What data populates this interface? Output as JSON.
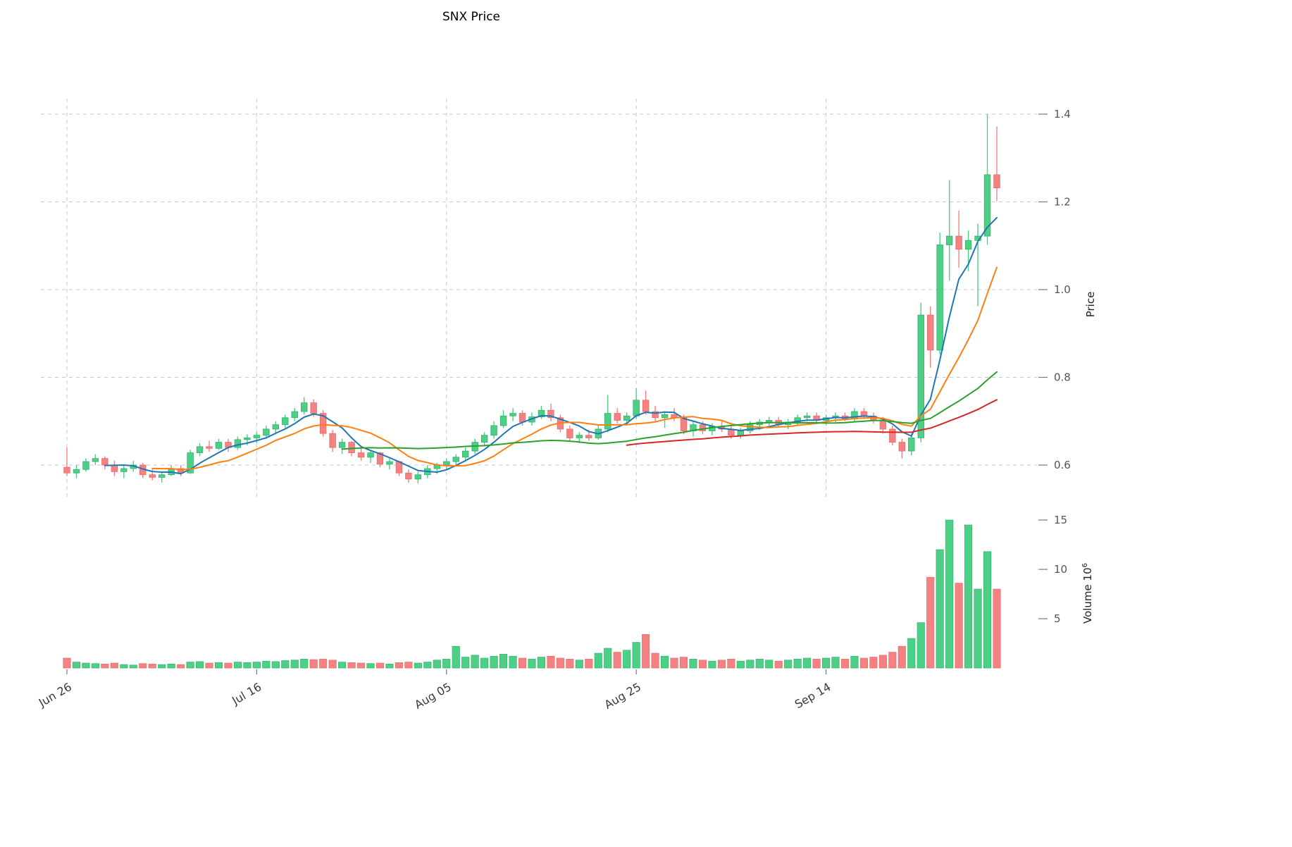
{
  "title": "SNX Price",
  "colors": {
    "up": "#4ecf86",
    "up_edge": "#2fb26d",
    "down": "#f58282",
    "down_edge": "#e76a6a",
    "ma_fast": "#1f77b4",
    "ma_mid": "#ff7f0e",
    "ma_slow": "#2ca02c",
    "ma_slowest": "#d62728",
    "grid": "#c9c9c9",
    "tick": "#777777"
  },
  "axes": {
    "price_label": "Price",
    "volume_label_prefix": "Volume  10",
    "volume_exponent": "6",
    "price_ticks": [
      "0.6",
      "0.8",
      "1.0",
      "1.2",
      "1.4"
    ],
    "volume_ticks": [
      "5",
      "10",
      "15"
    ],
    "x_tick_labels": [
      "Jun 26",
      "Jul 16",
      "Aug 05",
      "Aug 25",
      "Sep 14"
    ],
    "x_tick_indices": [
      0,
      20,
      40,
      60,
      80
    ]
  },
  "chart_data": {
    "type": "candlestick",
    "title": "SNX Price",
    "xlabel": "",
    "ylabel": "Price",
    "ylabel_volume": "Volume x10^6",
    "ylim": [
      0.53,
      1.45
    ],
    "volume_ylim_millions": [
      0,
      16
    ],
    "grid": "dashed",
    "legend": "none",
    "columns": [
      "date",
      "open",
      "high",
      "low",
      "close",
      "volume_millions"
    ],
    "moving_averages": [
      {
        "name": "SMA 5",
        "window": 5,
        "color": "#1f77b4"
      },
      {
        "name": "SMA 10",
        "window": 10,
        "color": "#ff7f0e"
      },
      {
        "name": "SMA 30",
        "window": 30,
        "color": "#2ca02c"
      },
      {
        "name": "SMA 60",
        "window": 60,
        "color": "#d62728"
      }
    ],
    "candles": [
      [
        "Jun 26",
        0.595,
        0.64,
        0.575,
        0.582,
        1.0
      ],
      [
        "Jun 27",
        0.582,
        0.6,
        0.57,
        0.59,
        0.6
      ],
      [
        "Jun 28",
        0.59,
        0.615,
        0.585,
        0.608,
        0.5
      ],
      [
        "Jun 29",
        0.608,
        0.625,
        0.6,
        0.615,
        0.45
      ],
      [
        "Jun 30",
        0.615,
        0.62,
        0.59,
        0.6,
        0.4
      ],
      [
        "Jul 01",
        0.6,
        0.61,
        0.575,
        0.585,
        0.5
      ],
      [
        "Jul 02",
        0.585,
        0.6,
        0.57,
        0.592,
        0.35
      ],
      [
        "Jul 03",
        0.592,
        0.61,
        0.585,
        0.6,
        0.3
      ],
      [
        "Jul 04",
        0.6,
        0.605,
        0.57,
        0.578,
        0.45
      ],
      [
        "Jul 05",
        0.578,
        0.59,
        0.565,
        0.572,
        0.4
      ],
      [
        "Jul 06",
        0.572,
        0.585,
        0.56,
        0.578,
        0.35
      ],
      [
        "Jul 07",
        0.578,
        0.6,
        0.575,
        0.592,
        0.4
      ],
      [
        "Jul 08",
        0.592,
        0.6,
        0.575,
        0.582,
        0.35
      ],
      [
        "Jul 09",
        0.582,
        0.635,
        0.58,
        0.628,
        0.6
      ],
      [
        "Jul 10",
        0.628,
        0.65,
        0.62,
        0.642,
        0.65
      ],
      [
        "Jul 11",
        0.642,
        0.655,
        0.63,
        0.638,
        0.5
      ],
      [
        "Jul 12",
        0.638,
        0.66,
        0.635,
        0.652,
        0.55
      ],
      [
        "Jul 13",
        0.652,
        0.66,
        0.63,
        0.64,
        0.5
      ],
      [
        "Jul 14",
        0.64,
        0.665,
        0.635,
        0.658,
        0.6
      ],
      [
        "Jul 15",
        0.658,
        0.67,
        0.645,
        0.662,
        0.55
      ],
      [
        "Jul 16",
        0.662,
        0.675,
        0.65,
        0.668,
        0.6
      ],
      [
        "Jul 17",
        0.668,
        0.69,
        0.66,
        0.682,
        0.7
      ],
      [
        "Jul 18",
        0.682,
        0.7,
        0.67,
        0.692,
        0.65
      ],
      [
        "Jul 19",
        0.692,
        0.715,
        0.685,
        0.708,
        0.75
      ],
      [
        "Jul 20",
        0.708,
        0.73,
        0.7,
        0.722,
        0.8
      ],
      [
        "Jul 21",
        0.722,
        0.755,
        0.715,
        0.742,
        0.9
      ],
      [
        "Jul 22",
        0.742,
        0.75,
        0.71,
        0.718,
        0.85
      ],
      [
        "Jul 23",
        0.718,
        0.725,
        0.665,
        0.672,
        0.9
      ],
      [
        "Jul 24",
        0.672,
        0.68,
        0.63,
        0.64,
        0.8
      ],
      [
        "Jul 25",
        0.64,
        0.66,
        0.625,
        0.652,
        0.6
      ],
      [
        "Jul 26",
        0.652,
        0.655,
        0.62,
        0.628,
        0.55
      ],
      [
        "Jul 27",
        0.628,
        0.64,
        0.61,
        0.618,
        0.5
      ],
      [
        "Jul 28",
        0.618,
        0.635,
        0.605,
        0.628,
        0.45
      ],
      [
        "Jul 29",
        0.628,
        0.63,
        0.595,
        0.602,
        0.5
      ],
      [
        "Jul 30",
        0.602,
        0.615,
        0.59,
        0.608,
        0.4
      ],
      [
        "Jul 31",
        0.608,
        0.61,
        0.575,
        0.582,
        0.55
      ],
      [
        "Aug 01",
        0.582,
        0.59,
        0.56,
        0.568,
        0.6
      ],
      [
        "Aug 02",
        0.568,
        0.585,
        0.558,
        0.578,
        0.5
      ],
      [
        "Aug 03",
        0.578,
        0.6,
        0.57,
        0.592,
        0.6
      ],
      [
        "Aug 04",
        0.592,
        0.605,
        0.58,
        0.6,
        0.8
      ],
      [
        "Aug 05",
        0.6,
        0.615,
        0.59,
        0.608,
        0.9
      ],
      [
        "Aug 06",
        0.608,
        0.625,
        0.6,
        0.618,
        2.2
      ],
      [
        "Aug 07",
        0.618,
        0.64,
        0.61,
        0.632,
        1.1
      ],
      [
        "Aug 08",
        0.632,
        0.66,
        0.625,
        0.652,
        1.3
      ],
      [
        "Aug 09",
        0.652,
        0.675,
        0.645,
        0.668,
        1.0
      ],
      [
        "Aug 10",
        0.668,
        0.7,
        0.66,
        0.69,
        1.2
      ],
      [
        "Aug 11",
        0.69,
        0.725,
        0.685,
        0.712,
        1.4
      ],
      [
        "Aug 12",
        0.712,
        0.73,
        0.7,
        0.718,
        1.2
      ],
      [
        "Aug 13",
        0.718,
        0.725,
        0.69,
        0.698,
        1.0
      ],
      [
        "Aug 14",
        0.698,
        0.72,
        0.69,
        0.71,
        0.9
      ],
      [
        "Aug 15",
        0.71,
        0.735,
        0.705,
        0.725,
        1.1
      ],
      [
        "Aug 16",
        0.725,
        0.74,
        0.7,
        0.708,
        1.2
      ],
      [
        "Aug 17",
        0.708,
        0.715,
        0.675,
        0.682,
        1.0
      ],
      [
        "Aug 18",
        0.682,
        0.69,
        0.655,
        0.662,
        0.9
      ],
      [
        "Aug 19",
        0.662,
        0.675,
        0.65,
        0.668,
        0.8
      ],
      [
        "Aug 20",
        0.668,
        0.68,
        0.655,
        0.662,
        0.9
      ],
      [
        "Aug 21",
        0.662,
        0.69,
        0.658,
        0.682,
        1.5
      ],
      [
        "Aug 22",
        0.682,
        0.76,
        0.675,
        0.718,
        2.0
      ],
      [
        "Aug 23",
        0.718,
        0.73,
        0.695,
        0.702,
        1.6
      ],
      [
        "Aug 24",
        0.702,
        0.72,
        0.69,
        0.712,
        1.8
      ],
      [
        "Aug 25",
        0.712,
        0.775,
        0.705,
        0.748,
        2.6
      ],
      [
        "Aug 26",
        0.748,
        0.77,
        0.715,
        0.722,
        3.4
      ],
      [
        "Aug 27",
        0.722,
        0.735,
        0.7,
        0.708,
        1.5
      ],
      [
        "Aug 28",
        0.708,
        0.72,
        0.685,
        0.715,
        1.2
      ],
      [
        "Aug 29",
        0.715,
        0.73,
        0.7,
        0.708,
        1.0
      ],
      [
        "Aug 30",
        0.708,
        0.715,
        0.67,
        0.678,
        1.1
      ],
      [
        "Aug 31",
        0.678,
        0.7,
        0.665,
        0.692,
        0.9
      ],
      [
        "Sep 01",
        0.692,
        0.7,
        0.67,
        0.678,
        0.8
      ],
      [
        "Sep 02",
        0.678,
        0.695,
        0.668,
        0.688,
        0.7
      ],
      [
        "Sep 03",
        0.688,
        0.7,
        0.675,
        0.682,
        0.8
      ],
      [
        "Sep 04",
        0.682,
        0.69,
        0.66,
        0.668,
        0.9
      ],
      [
        "Sep 05",
        0.668,
        0.685,
        0.66,
        0.678,
        0.7
      ],
      [
        "Sep 06",
        0.678,
        0.7,
        0.672,
        0.692,
        0.8
      ],
      [
        "Sep 07",
        0.692,
        0.705,
        0.68,
        0.698,
        0.9
      ],
      [
        "Sep 08",
        0.698,
        0.71,
        0.69,
        0.702,
        0.8
      ],
      [
        "Sep 09",
        0.702,
        0.71,
        0.685,
        0.692,
        0.7
      ],
      [
        "Sep 10",
        0.692,
        0.705,
        0.682,
        0.698,
        0.8
      ],
      [
        "Sep 11",
        0.698,
        0.715,
        0.69,
        0.708,
        0.9
      ],
      [
        "Sep 12",
        0.708,
        0.72,
        0.7,
        0.712,
        1.0
      ],
      [
        "Sep 13",
        0.712,
        0.72,
        0.695,
        0.702,
        0.9
      ],
      [
        "Sep 14",
        0.702,
        0.715,
        0.692,
        0.708,
        1.0
      ],
      [
        "Sep 15",
        0.708,
        0.72,
        0.698,
        0.712,
        1.1
      ],
      [
        "Sep 16",
        0.712,
        0.72,
        0.7,
        0.705,
        0.9
      ],
      [
        "Sep 17",
        0.705,
        0.73,
        0.7,
        0.722,
        1.2
      ],
      [
        "Sep 18",
        0.722,
        0.73,
        0.705,
        0.712,
        1.0
      ],
      [
        "Sep 19",
        0.712,
        0.72,
        0.695,
        0.702,
        1.1
      ],
      [
        "Sep 20",
        0.702,
        0.71,
        0.672,
        0.682,
        1.3
      ],
      [
        "Sep 21",
        0.682,
        0.69,
        0.645,
        0.652,
        1.6
      ],
      [
        "Sep 22",
        0.652,
        0.66,
        0.615,
        0.632,
        2.2
      ],
      [
        "Sep 23",
        0.632,
        0.672,
        0.622,
        0.662,
        3.0
      ],
      [
        "Sep 24",
        0.662,
        0.97,
        0.652,
        0.942,
        4.6
      ],
      [
        "Sep 25",
        0.942,
        0.962,
        0.822,
        0.862,
        9.2
      ],
      [
        "Sep 26",
        0.862,
        1.13,
        0.852,
        1.102,
        12.0
      ],
      [
        "Sep 27",
        1.102,
        1.25,
        1.02,
        1.122,
        15.0
      ],
      [
        "Sep 28",
        1.122,
        1.18,
        1.05,
        1.092,
        8.6
      ],
      [
        "Sep 29",
        1.092,
        1.135,
        1.042,
        1.112,
        14.5
      ],
      [
        "Sep 30",
        1.112,
        1.15,
        0.962,
        1.122,
        8.0
      ],
      [
        "Oct 01",
        1.122,
        1.4,
        1.102,
        1.262,
        11.8
      ],
      [
        "Oct 02",
        1.262,
        1.372,
        1.202,
        1.232,
        8.0
      ]
    ]
  }
}
